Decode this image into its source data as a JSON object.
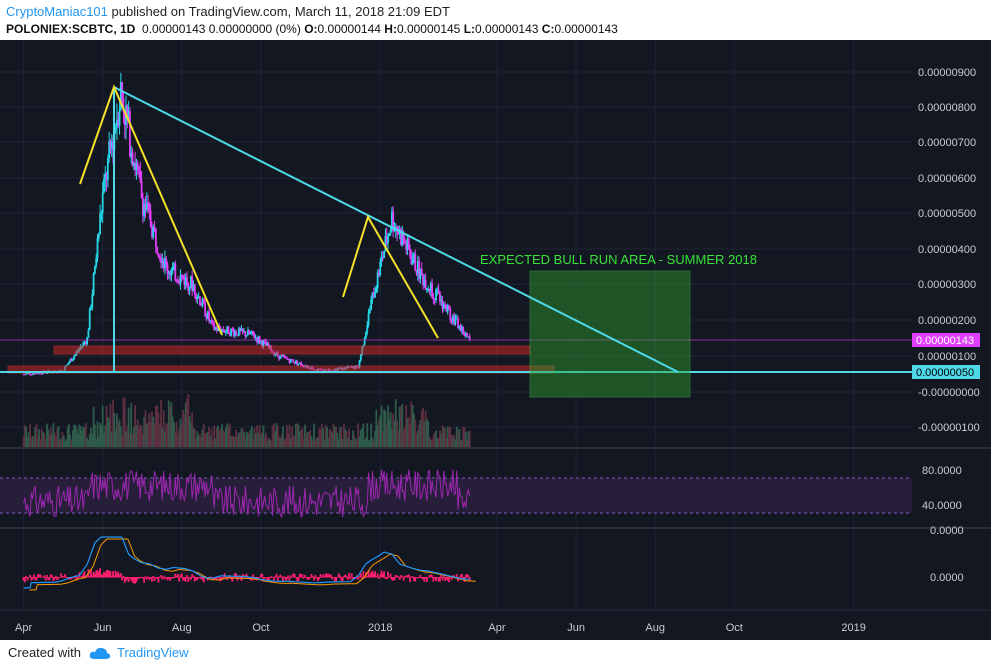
{
  "header": {
    "author": "CryptoManiac101",
    "published_text": " published on TradingView.com, March 11, 2018 21:09 EDT",
    "symbol": "POLONIEX:SCBTC, 1D",
    "change": "0.00000143 0.00000000 (0%)",
    "o_label": "O:",
    "o_value": "0.00000144",
    "h_label": "H:",
    "h_value": "0.00000145",
    "l_label": "L:",
    "l_value": "0.00000143",
    "c_label": "C:",
    "c_value": "0.00000143"
  },
  "footer": {
    "created_with": "Created with",
    "brand": "TradingView"
  },
  "colors": {
    "background": "#131722",
    "up": "#26d7e8",
    "down": "#e040fb",
    "trendline": "#4dd9e8",
    "triangle": "#f5e12a",
    "zone": "#2f9e2f",
    "support": "#c62828",
    "rsi": "#9c27b0",
    "macd_hist": "#ff1f6d",
    "macd_line": "#2196f3",
    "signal_line": "#ff9800"
  },
  "chart_data": [
    {
      "type": "candlestick",
      "pane": "price",
      "x_tick_labels": [
        "Apr",
        "Jun",
        "Aug",
        "Oct",
        "2018",
        "Apr",
        "Jun",
        "Aug",
        "Oct",
        "2019"
      ],
      "y_tick_labels": [
        "0.00000900",
        "0.00000800",
        "0.00000700",
        "0.00000600",
        "0.00000500",
        "0.00000400",
        "0.00000300",
        "0.00000200",
        "0.00000100",
        "-0.00000000",
        "-0.00000100"
      ],
      "ylim": [
        -1.8e-06,
        9.5e-06
      ],
      "price_label": "0.00000143",
      "support_label": "0.00000050",
      "annotation": "EXPECTED BULL RUN AREA - SUMMER 2018",
      "series_close_approx": [
        {
          "x": "2017-04-01",
          "y": 5e-07
        },
        {
          "x": "2017-05-01",
          "y": 6e-07
        },
        {
          "x": "2017-05-20",
          "y": 1.5e-06
        },
        {
          "x": "2017-06-01",
          "y": 5.5e-06
        },
        {
          "x": "2017-06-15",
          "y": 8.5e-06
        },
        {
          "x": "2017-07-01",
          "y": 5.5e-06
        },
        {
          "x": "2017-07-20",
          "y": 3.5e-06
        },
        {
          "x": "2017-08-10",
          "y": 3e-06
        },
        {
          "x": "2017-08-25",
          "y": 1.8e-06
        },
        {
          "x": "2017-09-25",
          "y": 1.6e-06
        },
        {
          "x": "2017-10-15",
          "y": 1e-06
        },
        {
          "x": "2017-11-15",
          "y": 6e-07
        },
        {
          "x": "2017-12-15",
          "y": 7e-07
        },
        {
          "x": "2017-12-25",
          "y": 2.5e-06
        },
        {
          "x": "2018-01-10",
          "y": 4.9e-06
        },
        {
          "x": "2018-02-01",
          "y": 3.3e-06
        },
        {
          "x": "2018-02-20",
          "y": 2.4e-06
        },
        {
          "x": "2018-03-11",
          "y": 1.43e-06
        }
      ]
    },
    {
      "type": "line",
      "pane": "rsi",
      "y_tick_labels": [
        "80.0000",
        "40.0000"
      ],
      "ylim": [
        20,
        95
      ],
      "bands": [
        70,
        30
      ]
    },
    {
      "type": "histogram",
      "pane": "macd",
      "y_tick_labels": [
        "0.0000",
        "0.0000"
      ]
    }
  ]
}
